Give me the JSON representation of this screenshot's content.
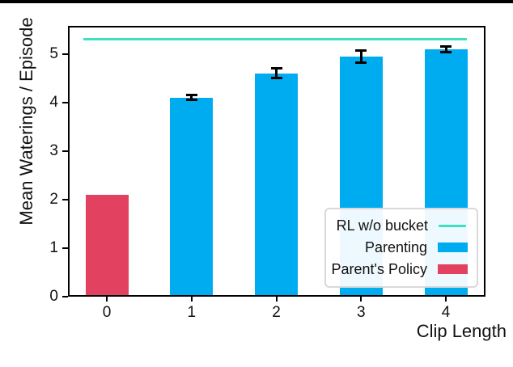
{
  "page": {
    "top_rule_color": "#000000",
    "background": "#ffffff"
  },
  "chart_data": {
    "type": "bar",
    "title": "",
    "xlabel": "Clip Length",
    "ylabel": "Mean Waterings / Episode",
    "categories": [
      "0",
      "1",
      "2",
      "3",
      "4"
    ],
    "series": [
      {
        "name": "Parenting",
        "color": "#00acf0",
        "values": [
          null,
          4.1,
          4.6,
          4.95,
          5.1
        ],
        "errors": [
          null,
          0.05,
          0.1,
          0.13,
          0.06
        ]
      },
      {
        "name": "Parent's Policy",
        "color": "#e2425f",
        "values": [
          2.1,
          null,
          null,
          null,
          null
        ],
        "errors": [
          null,
          null,
          null,
          null,
          null
        ]
      }
    ],
    "reference_line": {
      "name": "RL w/o bucket",
      "value": 5.3,
      "color": "#3ee0c2"
    },
    "error_bar_color": "#000000",
    "ylim": [
      0,
      5.58
    ],
    "yticks": [
      0,
      1,
      2,
      3,
      4,
      5
    ],
    "grid": false,
    "legend": {
      "position": "lower right",
      "entries": [
        {
          "label": "RL w/o bucket",
          "handle": "line",
          "color": "#3ee0c2"
        },
        {
          "label": "Parenting",
          "handle": "rect",
          "color": "#00acf0"
        },
        {
          "label": "Parent's Policy",
          "handle": "rect",
          "color": "#e2425f"
        }
      ]
    }
  }
}
